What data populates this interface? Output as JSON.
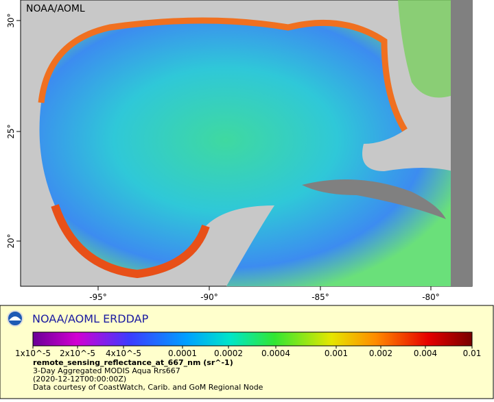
{
  "map": {
    "watermark": "NOAA/AOML",
    "x_ticks": [
      "-95°",
      "-90°",
      "-85°",
      "-80°"
    ],
    "y_ticks": [
      "30°",
      "25°",
      "20°"
    ]
  },
  "legend": {
    "title": "NOAA/AOML ERDDAP",
    "colorbar_ticks": [
      "1x10^-5",
      "2x10^-5",
      "4x10^-5",
      "0.0001",
      "0.0002",
      "0.0004",
      "0.001",
      "0.002",
      "0.004",
      "0.01"
    ],
    "variable": "remote_sensing_reflectance_at_667_nm (sr^-1)",
    "lines": [
      "3-Day Aggregated MODIS Aqua Rrs667",
      "(2020-12-12T00:00:00Z)",
      "Data courtesy of CoastWatch, Carib. and GoM Regional Node"
    ]
  }
}
